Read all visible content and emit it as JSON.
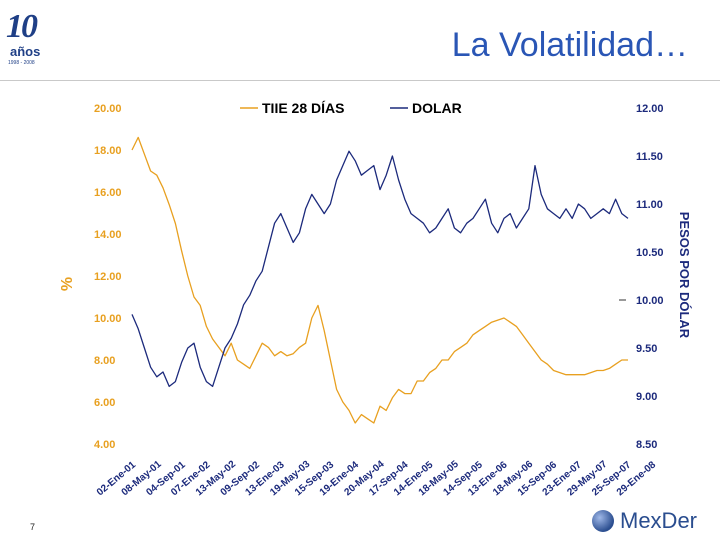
{
  "header": {
    "logo_number": "10",
    "logo_text": "años",
    "logo_years": "1998 - 2008",
    "title": "La Volatilidad…"
  },
  "footer": {
    "page_number": "7",
    "brand": "MexDer"
  },
  "colors": {
    "tiie": "#e8a020",
    "dolar": "#1c2a7c",
    "axis_text_orange": "#e8a020",
    "axis_text_dark": "#1c2a7c",
    "title": "#2a56b5"
  },
  "chart_data": {
    "type": "line",
    "left_axis": {
      "label": "%",
      "ticks": [
        "20.00",
        "18.00",
        "16.00",
        "14.00",
        "12.00",
        "10.00",
        "8.00",
        "6.00",
        "4.00"
      ],
      "range": [
        4,
        20
      ]
    },
    "right_axis": {
      "label": "PESOS POR DÓLAR",
      "ticks": [
        "12.00",
        "11.50",
        "11.00",
        "10.50",
        "10.00",
        "9.50",
        "9.00",
        "8.50"
      ],
      "range": [
        8.5,
        12
      ]
    },
    "x_ticks": [
      "02-Ene-01",
      "08-May-01",
      "04-Sep-01",
      "07-Ene-02",
      "13-May-02",
      "09-Sep-02",
      "13-Ene-03",
      "19-May-03",
      "15-Sep-03",
      "19-Ene-04",
      "20-May-04",
      "17-Sep-04",
      "14-Ene-05",
      "18-May-05",
      "14-Sep-05",
      "13-Ene-06",
      "18-May-06",
      "15-Sep-06",
      "23-Ene-07",
      "29-May-07",
      "25-Sep-07",
      "29-Ene-08"
    ],
    "legend": "top",
    "series": [
      {
        "name": "TIIE 28 DÍAS",
        "axis": "left",
        "values": [
          18.0,
          18.6,
          17.8,
          17.0,
          16.8,
          16.2,
          15.4,
          14.5,
          13.2,
          12.0,
          11.0,
          10.6,
          9.6,
          9.0,
          8.6,
          8.2,
          8.8,
          8.0,
          7.8,
          7.6,
          8.2,
          8.8,
          8.6,
          8.2,
          8.4,
          8.2,
          8.3,
          8.6,
          8.8,
          10.0,
          10.6,
          9.4,
          8.0,
          6.6,
          6.0,
          5.6,
          5.0,
          5.4,
          5.2,
          5.0,
          5.8,
          5.6,
          6.2,
          6.6,
          6.4,
          6.4,
          7.0,
          7.0,
          7.4,
          7.6,
          8.0,
          8.0,
          8.4,
          8.6,
          8.8,
          9.2,
          9.4,
          9.6,
          9.8,
          9.9,
          10.0,
          9.8,
          9.6,
          9.2,
          8.8,
          8.4,
          8.0,
          7.8,
          7.5,
          7.4,
          7.3,
          7.3,
          7.3,
          7.3,
          7.4,
          7.5,
          7.5,
          7.6,
          7.8,
          8.0,
          8.0
        ]
      },
      {
        "name": "DOLAR",
        "axis": "right",
        "values": [
          9.85,
          9.7,
          9.5,
          9.3,
          9.2,
          9.25,
          9.1,
          9.15,
          9.35,
          9.5,
          9.55,
          9.3,
          9.15,
          9.1,
          9.3,
          9.5,
          9.6,
          9.75,
          9.95,
          10.05,
          10.2,
          10.3,
          10.55,
          10.8,
          10.9,
          10.75,
          10.6,
          10.7,
          10.95,
          11.1,
          11.0,
          10.9,
          11.0,
          11.25,
          11.4,
          11.55,
          11.45,
          11.3,
          11.35,
          11.4,
          11.15,
          11.3,
          11.5,
          11.25,
          11.05,
          10.9,
          10.85,
          10.8,
          10.7,
          10.75,
          10.85,
          10.95,
          10.75,
          10.7,
          10.8,
          10.85,
          10.95,
          11.05,
          10.8,
          10.7,
          10.85,
          10.9,
          10.75,
          10.85,
          10.95,
          11.4,
          11.1,
          10.95,
          10.9,
          10.85,
          10.95,
          10.85,
          11.0,
          10.95,
          10.85,
          10.9,
          10.95,
          10.9,
          11.05,
          10.9,
          10.85
        ]
      }
    ]
  }
}
